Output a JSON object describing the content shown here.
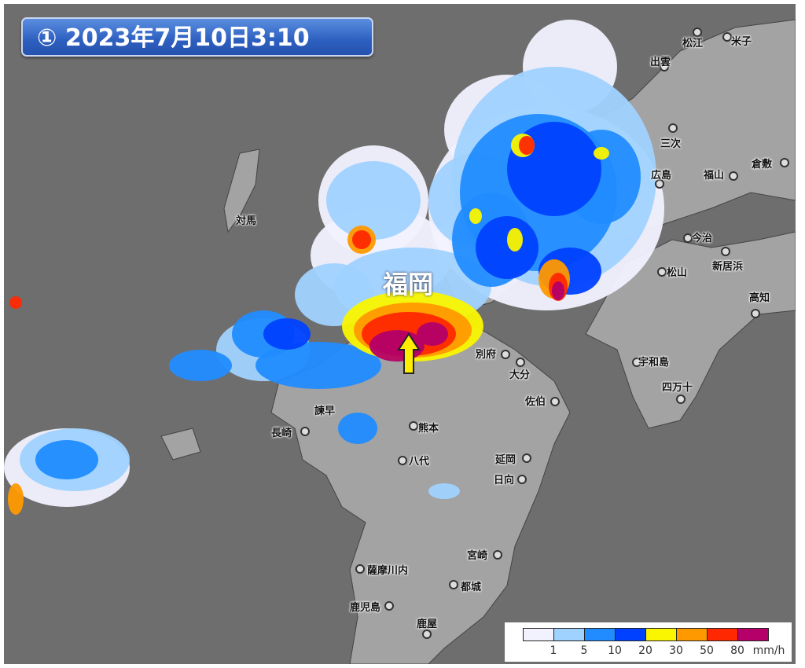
{
  "title": "① 2023年7月10日3:10",
  "highlight_label": "福岡",
  "arrow_color": "#ffee00",
  "colors": {
    "sea": "#6e6e6e",
    "land": "#a3a3a3"
  },
  "cities": [
    "松江",
    "米子",
    "出雲",
    "三次",
    "広島",
    "福山",
    "倉敷",
    "今治",
    "新居浜",
    "松山",
    "高知",
    "宇和島",
    "四万十",
    "別府",
    "大分",
    "佐伯",
    "熊本",
    "八代",
    "延岡",
    "日向",
    "長崎",
    "諫早",
    "宮崎",
    "薩摩川内",
    "都城",
    "鹿児島",
    "鹿屋",
    "対馬"
  ],
  "legend": {
    "colors": [
      "#f2f2ff",
      "#a0d2ff",
      "#218cff",
      "#0041ff",
      "#faf500",
      "#ff9900",
      "#ff2800",
      "#b40068"
    ],
    "ticks": [
      "1",
      "5",
      "10",
      "20",
      "30",
      "50",
      "80"
    ],
    "unit": "mm/h"
  }
}
